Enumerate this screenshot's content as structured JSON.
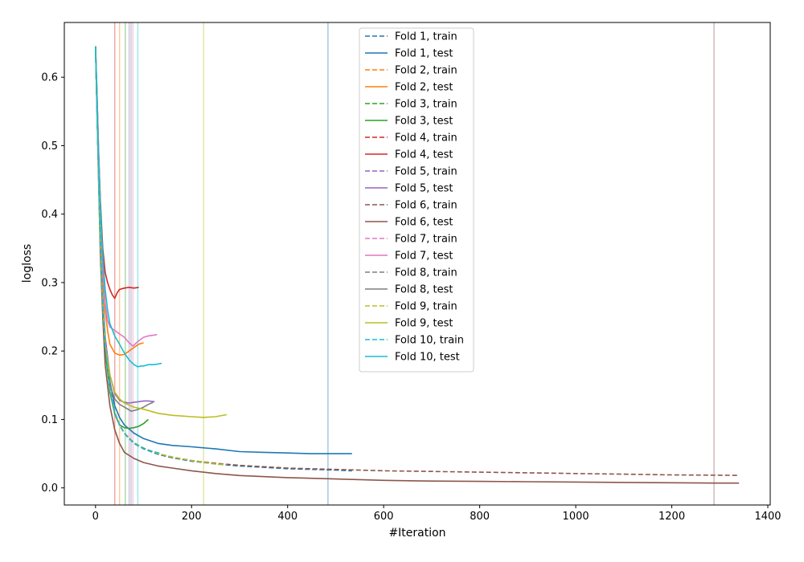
{
  "chart_data": {
    "type": "line",
    "title": "",
    "xlabel": "#Iteration",
    "ylabel": "logloss",
    "xlim": [
      -65,
      1405
    ],
    "ylim": [
      -0.025,
      0.68
    ],
    "xticks": [
      0,
      200,
      400,
      600,
      800,
      1000,
      1200,
      1400
    ],
    "yticks": [
      0.0,
      0.1,
      0.2,
      0.3,
      0.4,
      0.5,
      0.6
    ],
    "grid": false,
    "legend_position": "top-center",
    "best_iteration_lines": [
      {
        "fold": 1,
        "x": 484,
        "color": "#1f77b4"
      },
      {
        "fold": 2,
        "x": 50,
        "color": "#ff7f0e"
      },
      {
        "fold": 3,
        "x": 62,
        "color": "#2ca02c"
      },
      {
        "fold": 4,
        "x": 40,
        "color": "#d62728"
      },
      {
        "fold": 5,
        "x": 70,
        "color": "#9467bd"
      },
      {
        "fold": 6,
        "x": 1288,
        "color": "#8c564b"
      },
      {
        "fold": 7,
        "x": 78,
        "color": "#e377c2"
      },
      {
        "fold": 8,
        "x": 74,
        "color": "#7f7f7f"
      },
      {
        "fold": 9,
        "x": 225,
        "color": "#bcbd22"
      },
      {
        "fold": 10,
        "x": 88,
        "color": "#17becf"
      }
    ],
    "series": [
      {
        "name": "Fold 1, train",
        "color": "#1f77b4",
        "dash": true,
        "x": [
          0,
          5,
          10,
          15,
          20,
          30,
          40,
          50,
          60,
          80,
          100,
          130,
          160,
          200,
          250,
          300,
          350,
          400,
          450,
          500,
          534
        ],
        "y": [
          0.645,
          0.5,
          0.36,
          0.27,
          0.21,
          0.145,
          0.11,
          0.092,
          0.08,
          0.065,
          0.057,
          0.049,
          0.044,
          0.039,
          0.035,
          0.032,
          0.03,
          0.028,
          0.027,
          0.026,
          0.025
        ]
      },
      {
        "name": "Fold 1, test",
        "color": "#1f77b4",
        "dash": false,
        "x": [
          0,
          5,
          10,
          15,
          20,
          30,
          40,
          50,
          60,
          80,
          100,
          130,
          160,
          200,
          250,
          300,
          350,
          400,
          450,
          500,
          534
        ],
        "y": [
          0.645,
          0.5,
          0.37,
          0.28,
          0.22,
          0.155,
          0.12,
          0.103,
          0.092,
          0.08,
          0.072,
          0.065,
          0.062,
          0.06,
          0.057,
          0.053,
          0.052,
          0.051,
          0.05,
          0.05,
          0.05
        ]
      },
      {
        "name": "Fold 2, train",
        "color": "#ff7f0e",
        "dash": true,
        "x": [
          0,
          5,
          10,
          15,
          20,
          30,
          40,
          50,
          60,
          70,
          80,
          90,
          100
        ],
        "y": [
          0.645,
          0.5,
          0.36,
          0.27,
          0.21,
          0.145,
          0.11,
          0.092,
          0.08,
          0.072,
          0.066,
          0.061,
          0.058
        ]
      },
      {
        "name": "Fold 2, test",
        "color": "#ff7f0e",
        "dash": false,
        "x": [
          0,
          5,
          10,
          15,
          20,
          25,
          30,
          40,
          50,
          60,
          70,
          80,
          90,
          100
        ],
        "y": [
          0.645,
          0.52,
          0.39,
          0.31,
          0.26,
          0.23,
          0.21,
          0.197,
          0.194,
          0.195,
          0.2,
          0.205,
          0.21,
          0.212
        ]
      },
      {
        "name": "Fold 3, train",
        "color": "#2ca02c",
        "dash": true,
        "x": [
          0,
          5,
          10,
          15,
          20,
          30,
          40,
          50,
          60,
          70,
          80,
          90,
          100,
          110
        ],
        "y": [
          0.645,
          0.5,
          0.36,
          0.27,
          0.21,
          0.145,
          0.11,
          0.092,
          0.08,
          0.072,
          0.066,
          0.061,
          0.058,
          0.055
        ]
      },
      {
        "name": "Fold 3, test",
        "color": "#2ca02c",
        "dash": false,
        "x": [
          0,
          5,
          10,
          15,
          20,
          30,
          40,
          50,
          60,
          70,
          80,
          90,
          100,
          110
        ],
        "y": [
          0.645,
          0.5,
          0.36,
          0.27,
          0.2,
          0.14,
          0.108,
          0.092,
          0.088,
          0.087,
          0.088,
          0.09,
          0.094,
          0.1
        ]
      },
      {
        "name": "Fold 4, train",
        "color": "#d62728",
        "dash": true,
        "x": [
          0,
          5,
          10,
          15,
          20,
          30,
          40,
          50,
          60,
          70,
          80,
          90
        ],
        "y": [
          0.645,
          0.5,
          0.36,
          0.27,
          0.21,
          0.145,
          0.11,
          0.092,
          0.08,
          0.072,
          0.066,
          0.061
        ]
      },
      {
        "name": "Fold 4, test",
        "color": "#d62728",
        "dash": false,
        "x": [
          0,
          3,
          6,
          10,
          15,
          20,
          25,
          30,
          35,
          40,
          45,
          50,
          60,
          70,
          80,
          90
        ],
        "y": [
          0.645,
          0.58,
          0.5,
          0.42,
          0.35,
          0.315,
          0.3,
          0.29,
          0.282,
          0.277,
          0.285,
          0.29,
          0.292,
          0.293,
          0.292,
          0.293
        ]
      },
      {
        "name": "Fold 5, train",
        "color": "#9467bd",
        "dash": true,
        "x": [
          0,
          5,
          10,
          15,
          20,
          30,
          40,
          50,
          60,
          70,
          80,
          90,
          100,
          110,
          123
        ],
        "y": [
          0.645,
          0.5,
          0.36,
          0.27,
          0.21,
          0.145,
          0.11,
          0.092,
          0.08,
          0.072,
          0.066,
          0.061,
          0.058,
          0.055,
          0.052
        ]
      },
      {
        "name": "Fold 5, test",
        "color": "#9467bd",
        "dash": false,
        "x": [
          0,
          5,
          10,
          15,
          20,
          30,
          40,
          50,
          60,
          70,
          80,
          90,
          100,
          110,
          123
        ],
        "y": [
          0.645,
          0.5,
          0.37,
          0.28,
          0.22,
          0.165,
          0.138,
          0.128,
          0.125,
          0.124,
          0.125,
          0.126,
          0.127,
          0.127,
          0.126
        ]
      },
      {
        "name": "Fold 6, train",
        "color": "#8c564b",
        "dash": true,
        "x": [
          0,
          5,
          10,
          15,
          20,
          30,
          40,
          50,
          60,
          80,
          100,
          130,
          160,
          200,
          250,
          300,
          400,
          500,
          600,
          700,
          800,
          900,
          1000,
          1100,
          1200,
          1300,
          1340
        ],
        "y": [
          0.645,
          0.5,
          0.36,
          0.27,
          0.21,
          0.145,
          0.11,
          0.092,
          0.08,
          0.066,
          0.058,
          0.05,
          0.045,
          0.04,
          0.036,
          0.033,
          0.029,
          0.027,
          0.025,
          0.024,
          0.023,
          0.022,
          0.021,
          0.02,
          0.019,
          0.0185,
          0.0183
        ]
      },
      {
        "name": "Fold 6, test",
        "color": "#8c564b",
        "dash": false,
        "x": [
          0,
          5,
          10,
          15,
          20,
          30,
          40,
          50,
          60,
          80,
          100,
          130,
          160,
          200,
          250,
          300,
          400,
          500,
          600,
          700,
          800,
          900,
          1000,
          1100,
          1200,
          1300,
          1340
        ],
        "y": [
          0.645,
          0.49,
          0.34,
          0.25,
          0.18,
          0.12,
          0.085,
          0.065,
          0.052,
          0.043,
          0.037,
          0.032,
          0.029,
          0.025,
          0.021,
          0.018,
          0.015,
          0.013,
          0.011,
          0.01,
          0.0095,
          0.009,
          0.0085,
          0.008,
          0.0075,
          0.007,
          0.007
        ]
      },
      {
        "name": "Fold 7, train",
        "color": "#e377c2",
        "dash": true,
        "x": [
          0,
          5,
          10,
          15,
          20,
          30,
          40,
          50,
          60,
          70,
          80,
          90,
          100,
          110,
          120,
          130
        ],
        "y": [
          0.645,
          0.5,
          0.36,
          0.27,
          0.21,
          0.145,
          0.11,
          0.092,
          0.08,
          0.072,
          0.066,
          0.061,
          0.058,
          0.055,
          0.053,
          0.051
        ]
      },
      {
        "name": "Fold 7, test",
        "color": "#e377c2",
        "dash": false,
        "x": [
          0,
          5,
          10,
          15,
          20,
          25,
          30,
          40,
          50,
          60,
          70,
          78,
          85,
          90,
          100,
          110,
          120,
          128
        ],
        "y": [
          0.645,
          0.53,
          0.41,
          0.32,
          0.27,
          0.245,
          0.235,
          0.23,
          0.225,
          0.22,
          0.212,
          0.207,
          0.212,
          0.215,
          0.22,
          0.222,
          0.223,
          0.224
        ]
      },
      {
        "name": "Fold 8, train",
        "color": "#7f7f7f",
        "dash": true,
        "x": [
          0,
          5,
          10,
          15,
          20,
          30,
          40,
          50,
          60,
          70,
          80,
          90,
          100,
          110,
          120
        ],
        "y": [
          0.645,
          0.5,
          0.36,
          0.27,
          0.21,
          0.145,
          0.11,
          0.092,
          0.08,
          0.072,
          0.066,
          0.061,
          0.058,
          0.055,
          0.053
        ]
      },
      {
        "name": "Fold 8, test",
        "color": "#7f7f7f",
        "dash": false,
        "x": [
          0,
          5,
          10,
          15,
          20,
          30,
          40,
          50,
          60,
          70,
          74,
          80,
          90,
          100,
          110,
          120
        ],
        "y": [
          0.645,
          0.5,
          0.36,
          0.27,
          0.21,
          0.15,
          0.13,
          0.122,
          0.118,
          0.114,
          0.112,
          0.113,
          0.115,
          0.118,
          0.122,
          0.125
        ]
      },
      {
        "name": "Fold 9, train",
        "color": "#bcbd22",
        "dash": true,
        "x": [
          0,
          5,
          10,
          15,
          20,
          30,
          40,
          50,
          60,
          80,
          100,
          130,
          160,
          200,
          250,
          273
        ],
        "y": [
          0.645,
          0.5,
          0.36,
          0.27,
          0.21,
          0.145,
          0.11,
          0.092,
          0.08,
          0.066,
          0.058,
          0.05,
          0.045,
          0.04,
          0.035,
          0.034
        ]
      },
      {
        "name": "Fold 9, test",
        "color": "#bcbd22",
        "dash": false,
        "x": [
          0,
          5,
          10,
          15,
          20,
          30,
          40,
          50,
          60,
          80,
          100,
          130,
          160,
          200,
          225,
          250,
          273
        ],
        "y": [
          0.645,
          0.5,
          0.36,
          0.27,
          0.21,
          0.165,
          0.14,
          0.13,
          0.124,
          0.118,
          0.115,
          0.109,
          0.106,
          0.104,
          0.103,
          0.104,
          0.107
        ]
      },
      {
        "name": "Fold 10, train",
        "color": "#17becf",
        "dash": true,
        "x": [
          0,
          5,
          10,
          15,
          20,
          30,
          40,
          50,
          60,
          70,
          80,
          90,
          100,
          110,
          120,
          138
        ],
        "y": [
          0.645,
          0.5,
          0.36,
          0.27,
          0.21,
          0.145,
          0.11,
          0.092,
          0.08,
          0.072,
          0.066,
          0.061,
          0.058,
          0.055,
          0.053,
          0.05
        ]
      },
      {
        "name": "Fold 10, test",
        "color": "#17becf",
        "dash": false,
        "x": [
          0,
          3,
          6,
          10,
          15,
          20,
          25,
          30,
          40,
          50,
          60,
          70,
          80,
          88,
          95,
          100,
          110,
          120,
          130,
          138
        ],
        "y": [
          0.645,
          0.57,
          0.49,
          0.41,
          0.34,
          0.29,
          0.26,
          0.24,
          0.222,
          0.21,
          0.197,
          0.187,
          0.18,
          0.177,
          0.178,
          0.178,
          0.18,
          0.18,
          0.181,
          0.182
        ]
      }
    ]
  }
}
